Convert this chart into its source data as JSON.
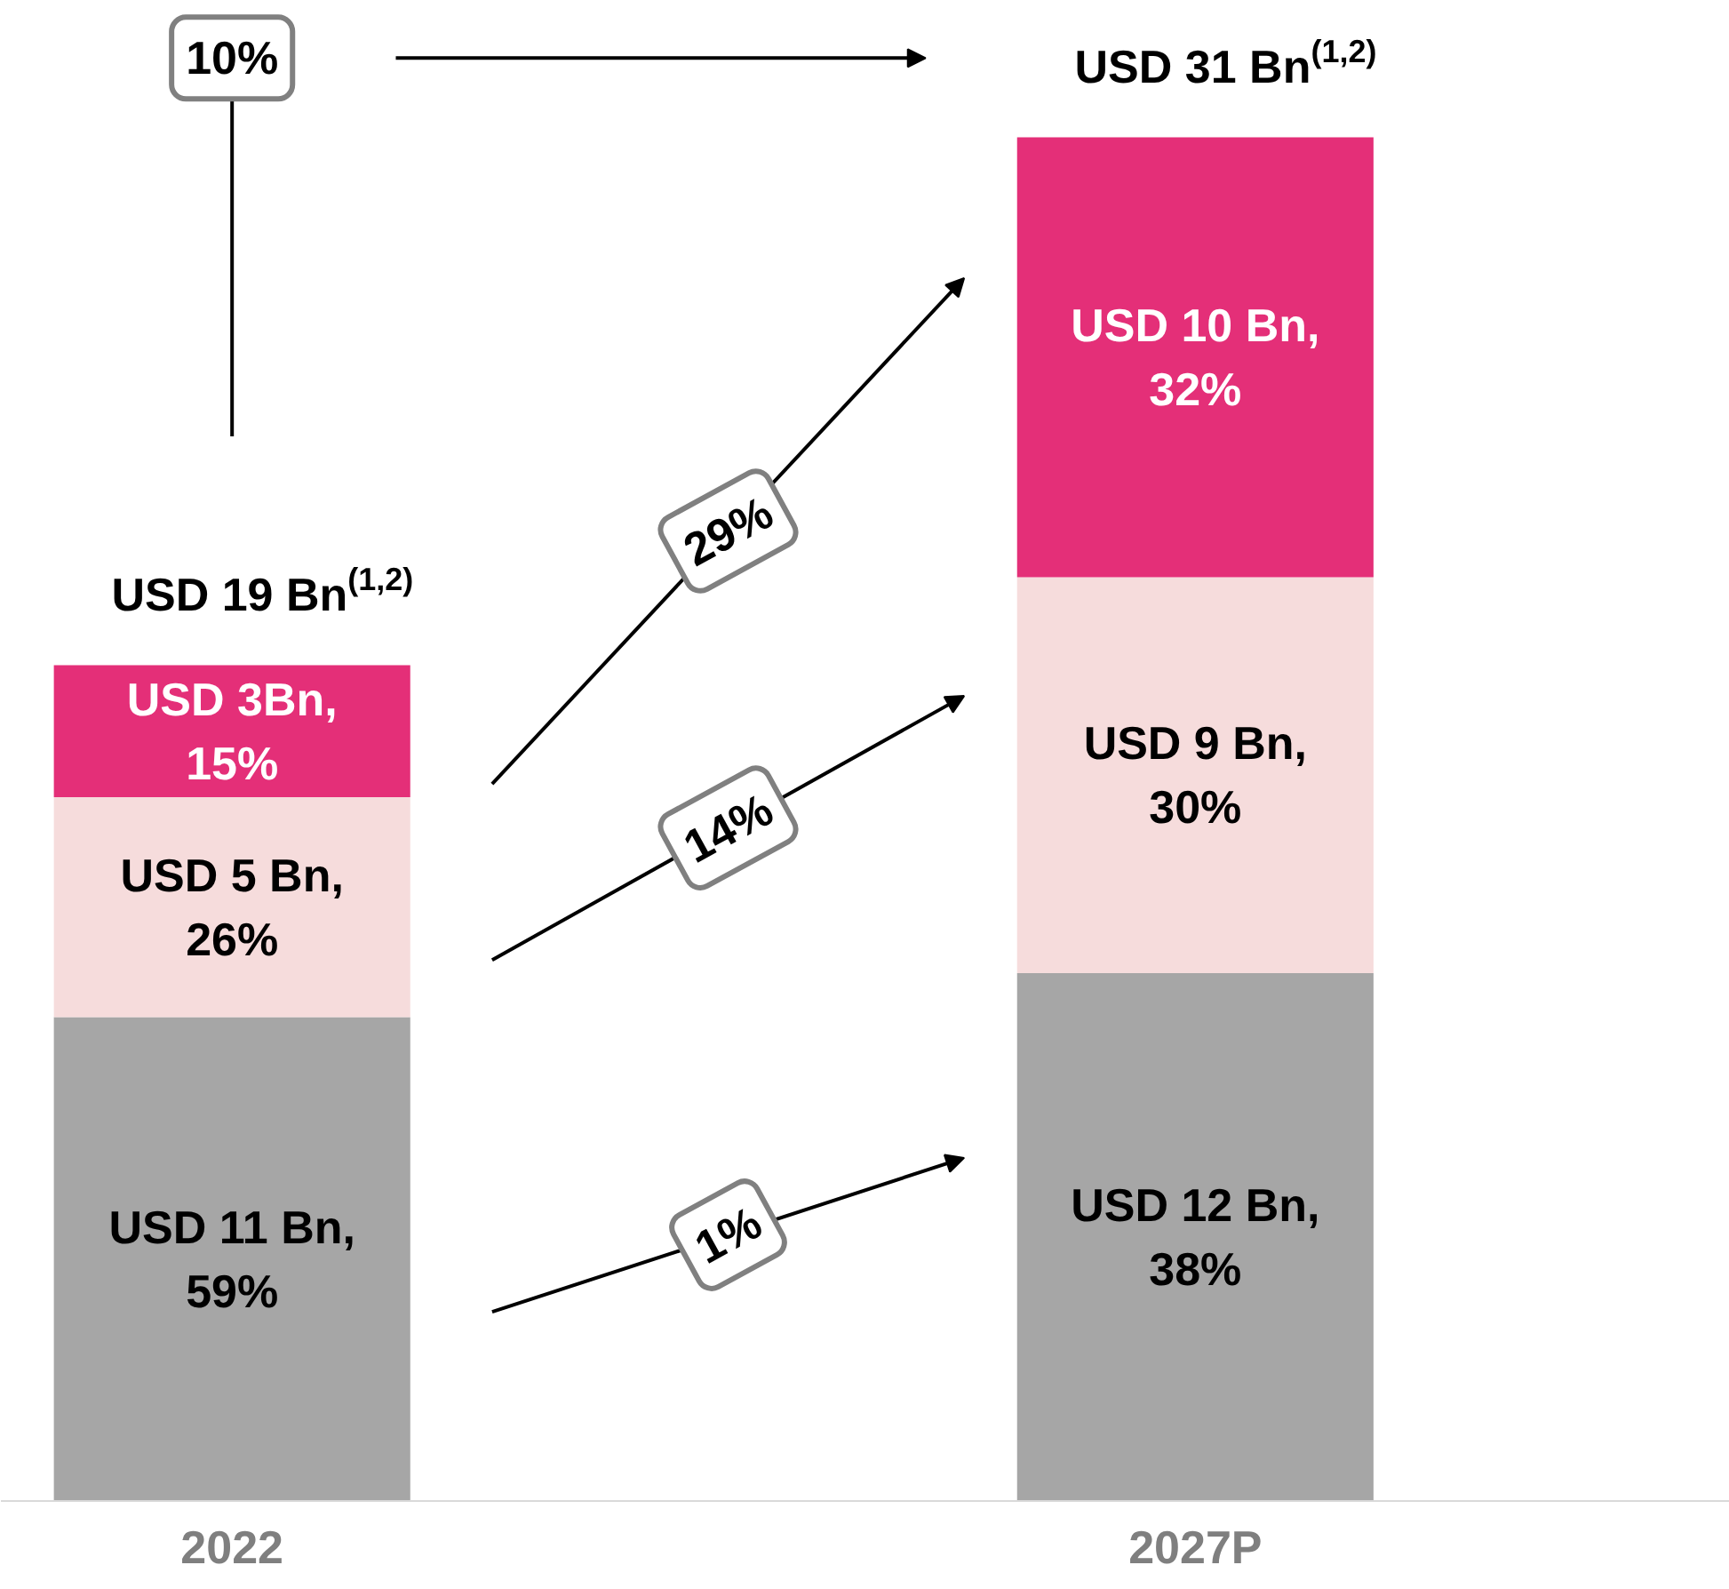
{
  "chart_data": {
    "type": "bar",
    "stacked": true,
    "categories": [
      "2022",
      "2027P"
    ],
    "series": [
      {
        "color": "#a6a6a6",
        "values": [
          11,
          12
        ],
        "value_labels": [
          "USD 11 Bn,\n59%",
          "USD 12 Bn,\n38%"
        ]
      },
      {
        "color": "#f6dcdc",
        "values": [
          5,
          9
        ],
        "value_labels": [
          "USD 5 Bn,\n26%",
          "USD 9 Bn,\n30%"
        ]
      },
      {
        "color": "#e42f78",
        "values": [
          3,
          10
        ],
        "value_labels": [
          "USD 3Bn,\n15%",
          "USD 10 Bn,\n32%"
        ]
      }
    ],
    "totals": [
      "USD 19 Bn$^{(1,2)}$",
      "USD 31 Bn$^{(1,2)}$"
    ],
    "annotations": [
      "10%",
      "29%",
      "14%",
      "1%"
    ],
    "grid": false
  }
}
